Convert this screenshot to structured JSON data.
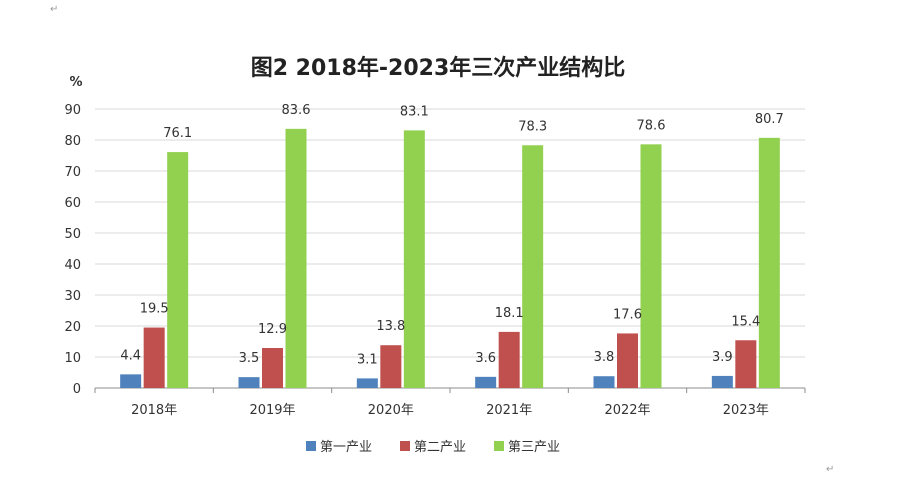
{
  "chart_data": {
    "type": "bar",
    "title": "图2 2018年-2023年三次产业结构比",
    "y_unit": "%",
    "ylim": [
      0,
      90
    ],
    "yticks": [
      0,
      10,
      20,
      30,
      40,
      50,
      60,
      70,
      80,
      90
    ],
    "grid": true,
    "legend_position": "bottom",
    "categories": [
      "2018年",
      "2019年",
      "2020年",
      "2021年",
      "2022年",
      "2023年"
    ],
    "series": [
      {
        "name": "第一产业",
        "color": "#4f81bd",
        "values": [
          4.4,
          3.5,
          3.1,
          3.6,
          3.8,
          3.9
        ]
      },
      {
        "name": "第二产业",
        "color": "#c0504d",
        "values": [
          19.5,
          12.9,
          13.8,
          18.1,
          17.6,
          15.4
        ]
      },
      {
        "name": "第三产业",
        "color": "#92d050",
        "values": [
          76.1,
          83.6,
          83.1,
          78.3,
          78.6,
          80.7
        ]
      }
    ]
  }
}
